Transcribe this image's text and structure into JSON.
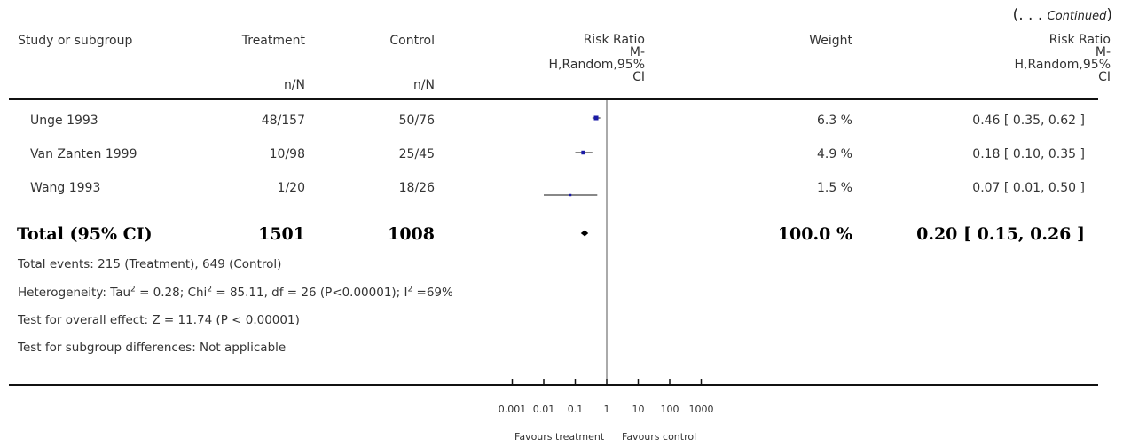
{
  "continued": {
    "ellipsis": "(. . . ",
    "word": "Continued",
    "close": ")"
  },
  "header": {
    "study": "Study or subgroup",
    "treatment": "Treatment",
    "treatment_sub": "n/N",
    "control": "Control",
    "control_sub": "n/N",
    "rr_lines": [
      "Risk Ratio",
      "M-",
      "H,Random,95%",
      "CI"
    ],
    "weight": "Weight",
    "rr2_lines": [
      "Risk Ratio",
      "M-",
      "H,Random,95%",
      "CI"
    ]
  },
  "rows": [
    {
      "study": "Unge 1993",
      "treatment": "48/157",
      "control": "50/76",
      "weight": "6.3 %",
      "ci": "0.46 [ 0.35, 0.62 ]"
    },
    {
      "study": "Van Zanten 1999",
      "treatment": "10/98",
      "control": "25/45",
      "weight": "4.9 %",
      "ci": "0.18 [ 0.10, 0.35 ]"
    },
    {
      "study": "Wang 1993",
      "treatment": "1/20",
      "control": "18/26",
      "weight": "1.5 %",
      "ci": "0.07 [ 0.01, 0.50 ]"
    }
  ],
  "total": {
    "label": "Total (95% CI)",
    "treatment": "1501",
    "control": "1008",
    "weight": "100.0 %",
    "ci": "0.20 [ 0.15, 0.26 ]"
  },
  "notes": {
    "events": "Total events: 215 (Treatment), 649 (Control)",
    "het_a": "Heterogeneity: Tau",
    "het_b": " = 0.28; Chi",
    "het_c": " = 85.11, df = 26 (P<0.00001); I",
    "het_d": " =69%",
    "sup": "2",
    "overall": "Test for overall effect: Z = 11.74 (P < 0.00001)",
    "subgroup": "Test for subgroup differences: Not applicable"
  },
  "axis": {
    "favours_left": "Favours treatment",
    "favours_right": "Favours control"
  },
  "chart_data": {
    "type": "scatter",
    "xscale": "log",
    "xlim": [
      0.001,
      1000
    ],
    "xticks": [
      0.001,
      0.01,
      0.1,
      1,
      10,
      100,
      1000
    ],
    "xtick_labels": [
      "0.001",
      "0.01",
      "0.1",
      "1",
      "10",
      "100",
      "1000"
    ],
    "studies": [
      {
        "name": "Unge 1993",
        "rr": 0.46,
        "lower": 0.35,
        "upper": 0.62,
        "weight": 6.3
      },
      {
        "name": "Van Zanten 1999",
        "rr": 0.18,
        "lower": 0.1,
        "upper": 0.35,
        "weight": 4.9
      },
      {
        "name": "Wang 1993",
        "rr": 0.07,
        "lower": 0.01,
        "upper": 0.5,
        "weight": 1.5
      }
    ],
    "pooled": {
      "rr": 0.2,
      "lower": 0.15,
      "upper": 0.26
    },
    "square_color": "#1a1aa6"
  }
}
